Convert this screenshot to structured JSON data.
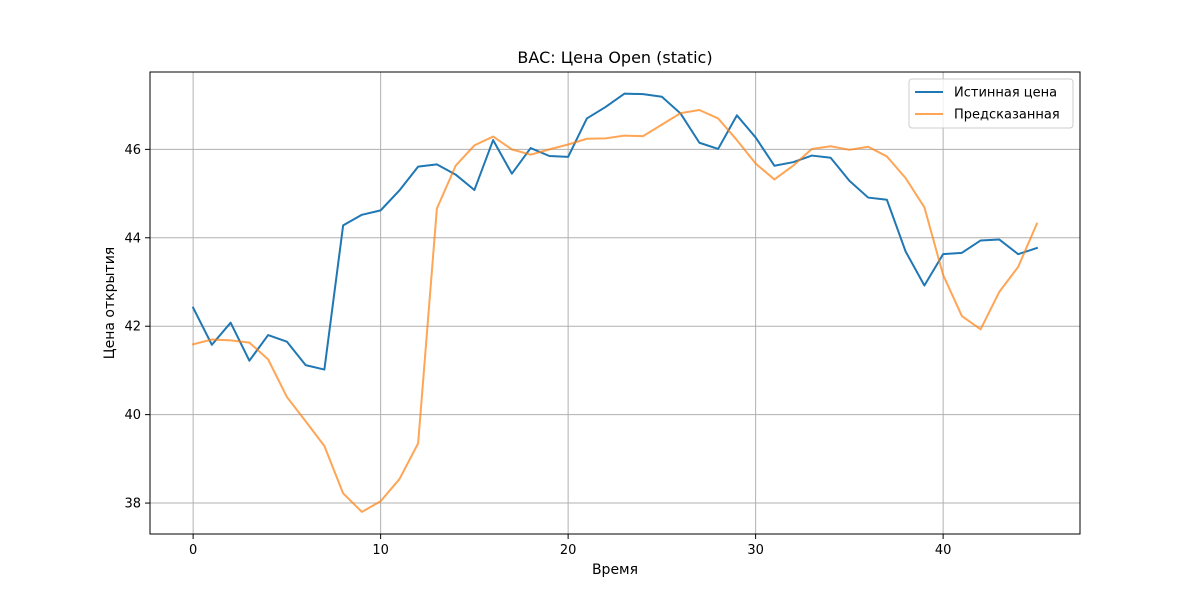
{
  "chart_data": {
    "type": "line",
    "title": "BAC: Цена Open (static)",
    "xlabel": "Время",
    "ylabel": "Цена открытия",
    "xlim": [
      -2.3,
      47.3
    ],
    "ylim": [
      37.3,
      47.75
    ],
    "xticks": [
      0,
      10,
      20,
      30,
      40
    ],
    "yticks": [
      38,
      40,
      42,
      44,
      46
    ],
    "grid": true,
    "legend_position": "top-right",
    "x": [
      0,
      1,
      2,
      3,
      4,
      5,
      6,
      7,
      8,
      9,
      10,
      11,
      12,
      13,
      14,
      15,
      16,
      17,
      18,
      19,
      20,
      21,
      22,
      23,
      24,
      25,
      26,
      27,
      28,
      29,
      30,
      31,
      32,
      33,
      34,
      35,
      36,
      37,
      38,
      39,
      40,
      41,
      42,
      43,
      44,
      45
    ],
    "series": [
      {
        "name": "Истинная цена",
        "color": "#1f77b4",
        "values": [
          42.42,
          41.58,
          42.08,
          41.22,
          41.8,
          41.65,
          41.12,
          41.02,
          44.28,
          44.52,
          44.62,
          45.07,
          45.61,
          45.66,
          45.43,
          45.08,
          46.21,
          45.45,
          46.03,
          45.85,
          45.83,
          46.7,
          46.96,
          47.26,
          47.25,
          47.19,
          46.81,
          46.15,
          46.01,
          46.77,
          46.27,
          45.63,
          45.71,
          45.86,
          45.81,
          45.29,
          44.91,
          44.86,
          43.69,
          42.92,
          43.63,
          43.66,
          43.94,
          43.96,
          43.63,
          43.77
        ]
      },
      {
        "name": "Предсказанная",
        "color": "#ff7f0e",
        "values": [
          41.59,
          41.7,
          41.68,
          41.63,
          41.25,
          40.4,
          39.85,
          39.29,
          38.22,
          37.8,
          38.04,
          38.54,
          39.35,
          44.66,
          45.63,
          46.09,
          46.29,
          46.0,
          45.88,
          46.0,
          46.11,
          46.24,
          46.25,
          46.31,
          46.3,
          46.56,
          46.82,
          46.89,
          46.7,
          46.21,
          45.68,
          45.32,
          45.63,
          46.01,
          46.07,
          45.99,
          46.06,
          45.84,
          45.35,
          44.69,
          43.16,
          42.23,
          41.93,
          42.78,
          43.34,
          44.32
        ]
      }
    ]
  }
}
